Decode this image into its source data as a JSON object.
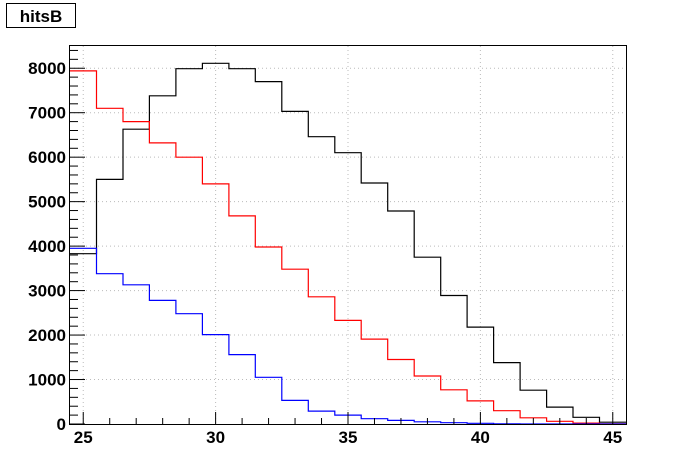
{
  "chart_data": {
    "type": "histogram",
    "title": "hitsB",
    "xlabel": "",
    "ylabel": "",
    "xlim": [
      24.5,
      45.5
    ],
    "ylim": [
      0,
      8500
    ],
    "grid": true,
    "bin_edges": [
      24.5,
      25.5,
      26.5,
      27.5,
      28.5,
      29.5,
      30.5,
      31.5,
      32.5,
      33.5,
      34.5,
      35.5,
      36.5,
      37.5,
      38.5,
      39.5,
      40.5,
      41.5,
      42.5,
      43.5,
      44.5,
      45.5
    ],
    "x_ticks": [
      25,
      30,
      35,
      40,
      45
    ],
    "y_ticks": [
      0,
      1000,
      2000,
      3000,
      4000,
      5000,
      6000,
      7000,
      8000
    ],
    "series": [
      {
        "color": "#000000",
        "values": [
          3830,
          5500,
          6630,
          7380,
          7990,
          8110,
          7990,
          7700,
          7030,
          6460,
          6100,
          5420,
          4790,
          3750,
          2890,
          2180,
          1380,
          760,
          380,
          150,
          40
        ]
      },
      {
        "color": "#ff0000",
        "values": [
          7940,
          7100,
          6800,
          6320,
          6000,
          5400,
          4680,
          3980,
          3480,
          2860,
          2330,
          1910,
          1450,
          1080,
          770,
          520,
          300,
          140,
          60,
          20,
          5
        ]
      },
      {
        "color": "#0000ff",
        "values": [
          3950,
          3380,
          3130,
          2780,
          2480,
          2010,
          1560,
          1050,
          530,
          290,
          200,
          120,
          80,
          50,
          30,
          15,
          5,
          0,
          0,
          0,
          0
        ]
      }
    ]
  }
}
